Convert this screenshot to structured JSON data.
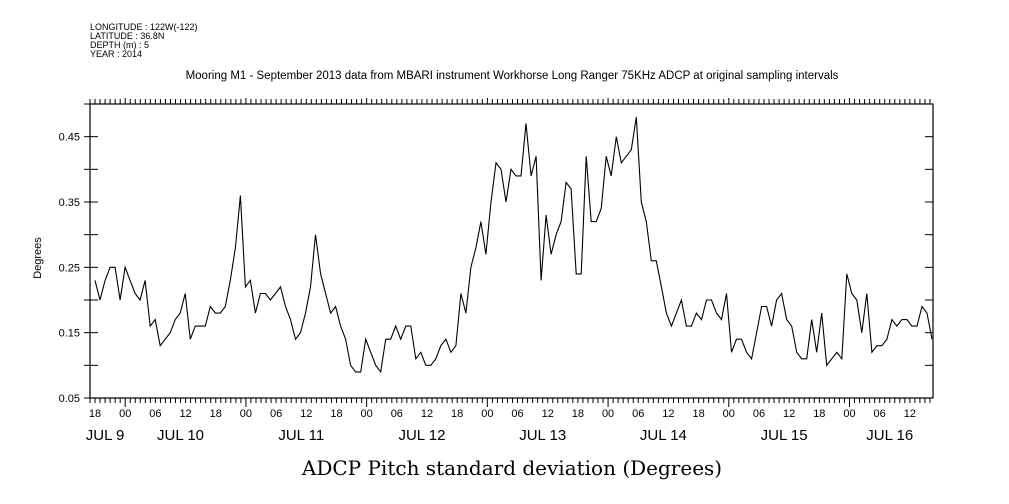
{
  "header": {
    "lines": [
      "LONGITUDE : 122W(-122)",
      "LATITUDE : 36.8N",
      "DEPTH (m) : 5",
      "YEAR : 2014"
    ]
  },
  "chart_data": {
    "type": "line",
    "title": "Mooring M1 - September 2013 data from MBARI instrument Workhorse Long Ranger 75KHz ADCP at original sampling intervals",
    "xlabel": "ADCP Pitch standard deviation (Degrees)",
    "ylabel": "Degrees",
    "x_units": "hours since JUL 8 00:00",
    "xlim": [
      17,
      184.6
    ],
    "ylim": [
      0.05,
      0.5
    ],
    "grid": false,
    "y_ticks": [
      0.05,
      0.15,
      0.25,
      0.35,
      0.45
    ],
    "y_tick_labels": [
      "0.05",
      "0.15",
      "0.25",
      "0.35",
      "0.45"
    ],
    "x_ticks": [
      18,
      24,
      30,
      36,
      42,
      48,
      54,
      60,
      66,
      72,
      78,
      84,
      90,
      96,
      102,
      108,
      114,
      120,
      126,
      132,
      138,
      144,
      150,
      156,
      162,
      168,
      174,
      180
    ],
    "x_tick_labels": [
      "18",
      "00",
      "06",
      "12",
      "18",
      "00",
      "06",
      "12",
      "18",
      "00",
      "06",
      "12",
      "18",
      "00",
      "06",
      "12",
      "18",
      "00",
      "06",
      "12",
      "18",
      "00",
      "06",
      "12",
      "18",
      "00",
      "06",
      "12"
    ],
    "day_labels": [
      {
        "label": "JUL  9",
        "x": 20
      },
      {
        "label": "JUL 10",
        "x": 35
      },
      {
        "label": "JUL 11",
        "x": 59
      },
      {
        "label": "JUL 12",
        "x": 83
      },
      {
        "label": "JUL 13",
        "x": 107
      },
      {
        "label": "JUL 14",
        "x": 131
      },
      {
        "label": "JUL 15",
        "x": 155
      },
      {
        "label": "JUL 16",
        "x": 176
      }
    ],
    "series": [
      {
        "name": "ADCP Pitch standard deviation",
        "x_start": 18,
        "x_end": 184.4,
        "values": [
          0.23,
          0.2,
          0.23,
          0.25,
          0.25,
          0.2,
          0.25,
          0.23,
          0.21,
          0.2,
          0.23,
          0.16,
          0.17,
          0.13,
          0.14,
          0.15,
          0.17,
          0.18,
          0.21,
          0.14,
          0.16,
          0.16,
          0.16,
          0.19,
          0.18,
          0.18,
          0.19,
          0.23,
          0.28,
          0.36,
          0.22,
          0.23,
          0.18,
          0.21,
          0.21,
          0.2,
          0.21,
          0.22,
          0.19,
          0.17,
          0.14,
          0.15,
          0.18,
          0.22,
          0.3,
          0.24,
          0.21,
          0.18,
          0.19,
          0.16,
          0.14,
          0.1,
          0.09,
          0.09,
          0.14,
          0.12,
          0.1,
          0.09,
          0.14,
          0.14,
          0.16,
          0.14,
          0.16,
          0.16,
          0.11,
          0.12,
          0.1,
          0.1,
          0.11,
          0.13,
          0.14,
          0.12,
          0.13,
          0.21,
          0.18,
          0.25,
          0.28,
          0.32,
          0.27,
          0.35,
          0.41,
          0.4,
          0.35,
          0.4,
          0.39,
          0.39,
          0.47,
          0.39,
          0.42,
          0.23,
          0.33,
          0.27,
          0.3,
          0.32,
          0.38,
          0.37,
          0.24,
          0.24,
          0.42,
          0.32,
          0.32,
          0.34,
          0.42,
          0.39,
          0.45,
          0.41,
          0.42,
          0.43,
          0.48,
          0.35,
          0.32,
          0.26,
          0.26,
          0.22,
          0.18,
          0.16,
          0.18,
          0.2,
          0.16,
          0.16,
          0.18,
          0.17,
          0.2,
          0.2,
          0.18,
          0.17,
          0.21,
          0.12,
          0.14,
          0.14,
          0.12,
          0.11,
          0.15,
          0.19,
          0.19,
          0.16,
          0.2,
          0.21,
          0.17,
          0.16,
          0.12,
          0.11,
          0.11,
          0.17,
          0.12,
          0.18,
          0.1,
          0.11,
          0.12,
          0.11,
          0.24,
          0.21,
          0.2,
          0.15,
          0.21,
          0.12,
          0.13,
          0.13,
          0.14,
          0.17,
          0.16,
          0.17,
          0.17,
          0.16,
          0.16,
          0.19,
          0.18,
          0.14
        ]
      }
    ]
  }
}
